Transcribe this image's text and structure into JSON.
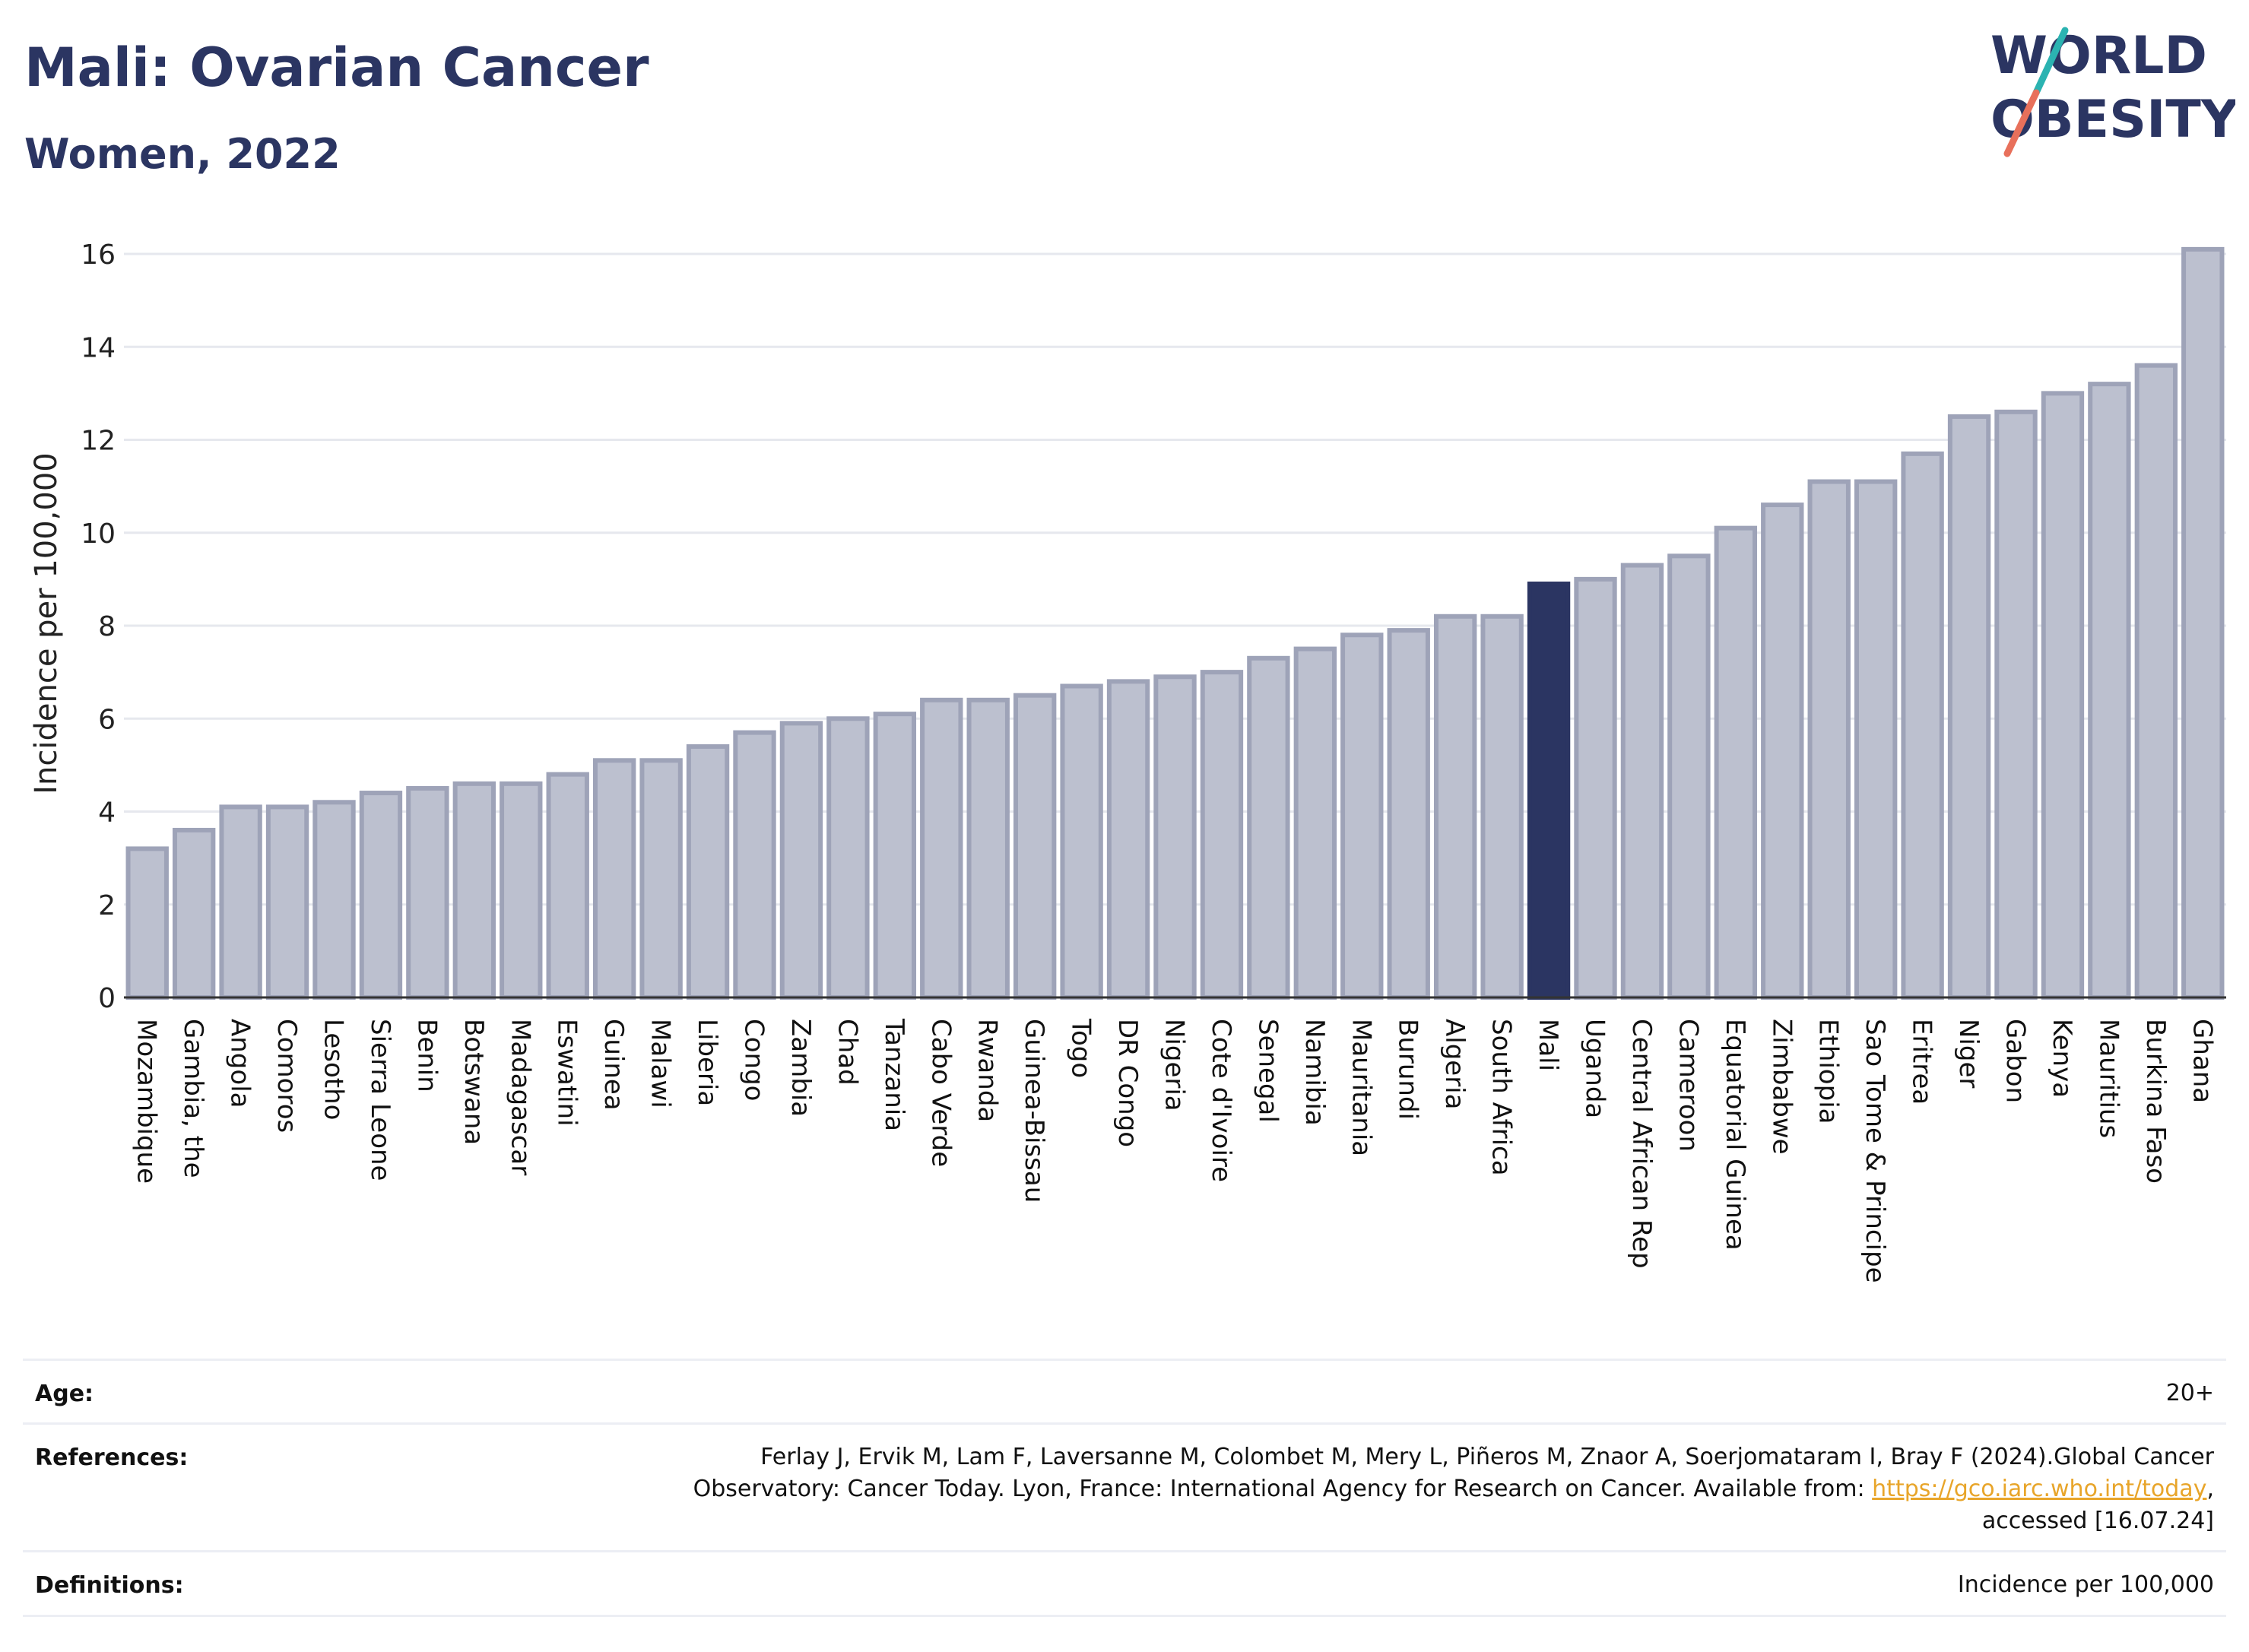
{
  "header": {
    "title": "Mali: Ovarian Cancer",
    "subtitle": "Women, 2022"
  },
  "logo": {
    "line1": "WORLD",
    "line2": "OBESITY"
  },
  "colors": {
    "highlight": "#2b3562",
    "bar_fill": "#bcc0cf",
    "bar_stroke": "#9ea3b8",
    "title": "#2b3562",
    "link": "#e8a52a"
  },
  "chart_data": {
    "type": "bar",
    "title": "Mali: Ovarian Cancer",
    "subtitle": "Women, 2022",
    "xlabel": "",
    "ylabel": "Incidence per 100,000",
    "ylim": [
      0,
      16.5
    ],
    "yticks": [
      0,
      2,
      4,
      6,
      8,
      10,
      12,
      14,
      16
    ],
    "grid": "horizontal",
    "highlight": "Mali",
    "categories": [
      "Mozambique",
      "Gambia, the",
      "Angola",
      "Comoros",
      "Lesotho",
      "Sierra Leone",
      "Benin",
      "Botswana",
      "Madagascar",
      "Eswatini",
      "Guinea",
      "Malawi",
      "Liberia",
      "Congo",
      "Zambia",
      "Chad",
      "Tanzania",
      "Cabo Verde",
      "Rwanda",
      "Guinea-Bissau",
      "Togo",
      "DR Congo",
      "Nigeria",
      "Cote d'Ivoire",
      "Senegal",
      "Namibia",
      "Mauritania",
      "Burundi",
      "Algeria",
      "South Africa",
      "Mali",
      "Uganda",
      "Central African Rep",
      "Cameroon",
      "Equatorial Guinea",
      "Zimbabwe",
      "Ethiopia",
      "Sao Tome & Principe",
      "Eritrea",
      "Niger",
      "Gabon",
      "Kenya",
      "Mauritius",
      "Burkina Faso",
      "Ghana"
    ],
    "values": [
      3.2,
      3.6,
      4.1,
      4.1,
      4.2,
      4.4,
      4.5,
      4.6,
      4.6,
      4.8,
      5.1,
      5.1,
      5.4,
      5.7,
      5.9,
      6.0,
      6.1,
      6.4,
      6.4,
      6.5,
      6.7,
      6.8,
      6.9,
      7.0,
      7.3,
      7.5,
      7.8,
      7.9,
      8.2,
      8.2,
      8.9,
      9.0,
      9.3,
      9.5,
      10.1,
      10.6,
      11.1,
      11.1,
      11.7,
      12.5,
      12.6,
      13.0,
      13.2,
      13.6,
      16.1
    ]
  },
  "footer": {
    "age_label": "Age:",
    "age_value": "20+",
    "references_label": "References:",
    "references_line1": "Ferlay J, Ervik M, Lam F, Laversanne M, Colombet M, Mery L, Piñeros M, Znaor A, Soerjomataram I, Bray F (2024).Global Cancer",
    "references_line2_pre": "Observatory: Cancer Today. Lyon, France: International Agency for Research on Cancer. Available from: ",
    "references_link": "https://gco.iarc.who.int/today",
    "references_line2_post": ",",
    "references_line3": "accessed [16.07.24]",
    "definitions_label": "Definitions:",
    "definitions_value": "Incidence per 100,000"
  }
}
